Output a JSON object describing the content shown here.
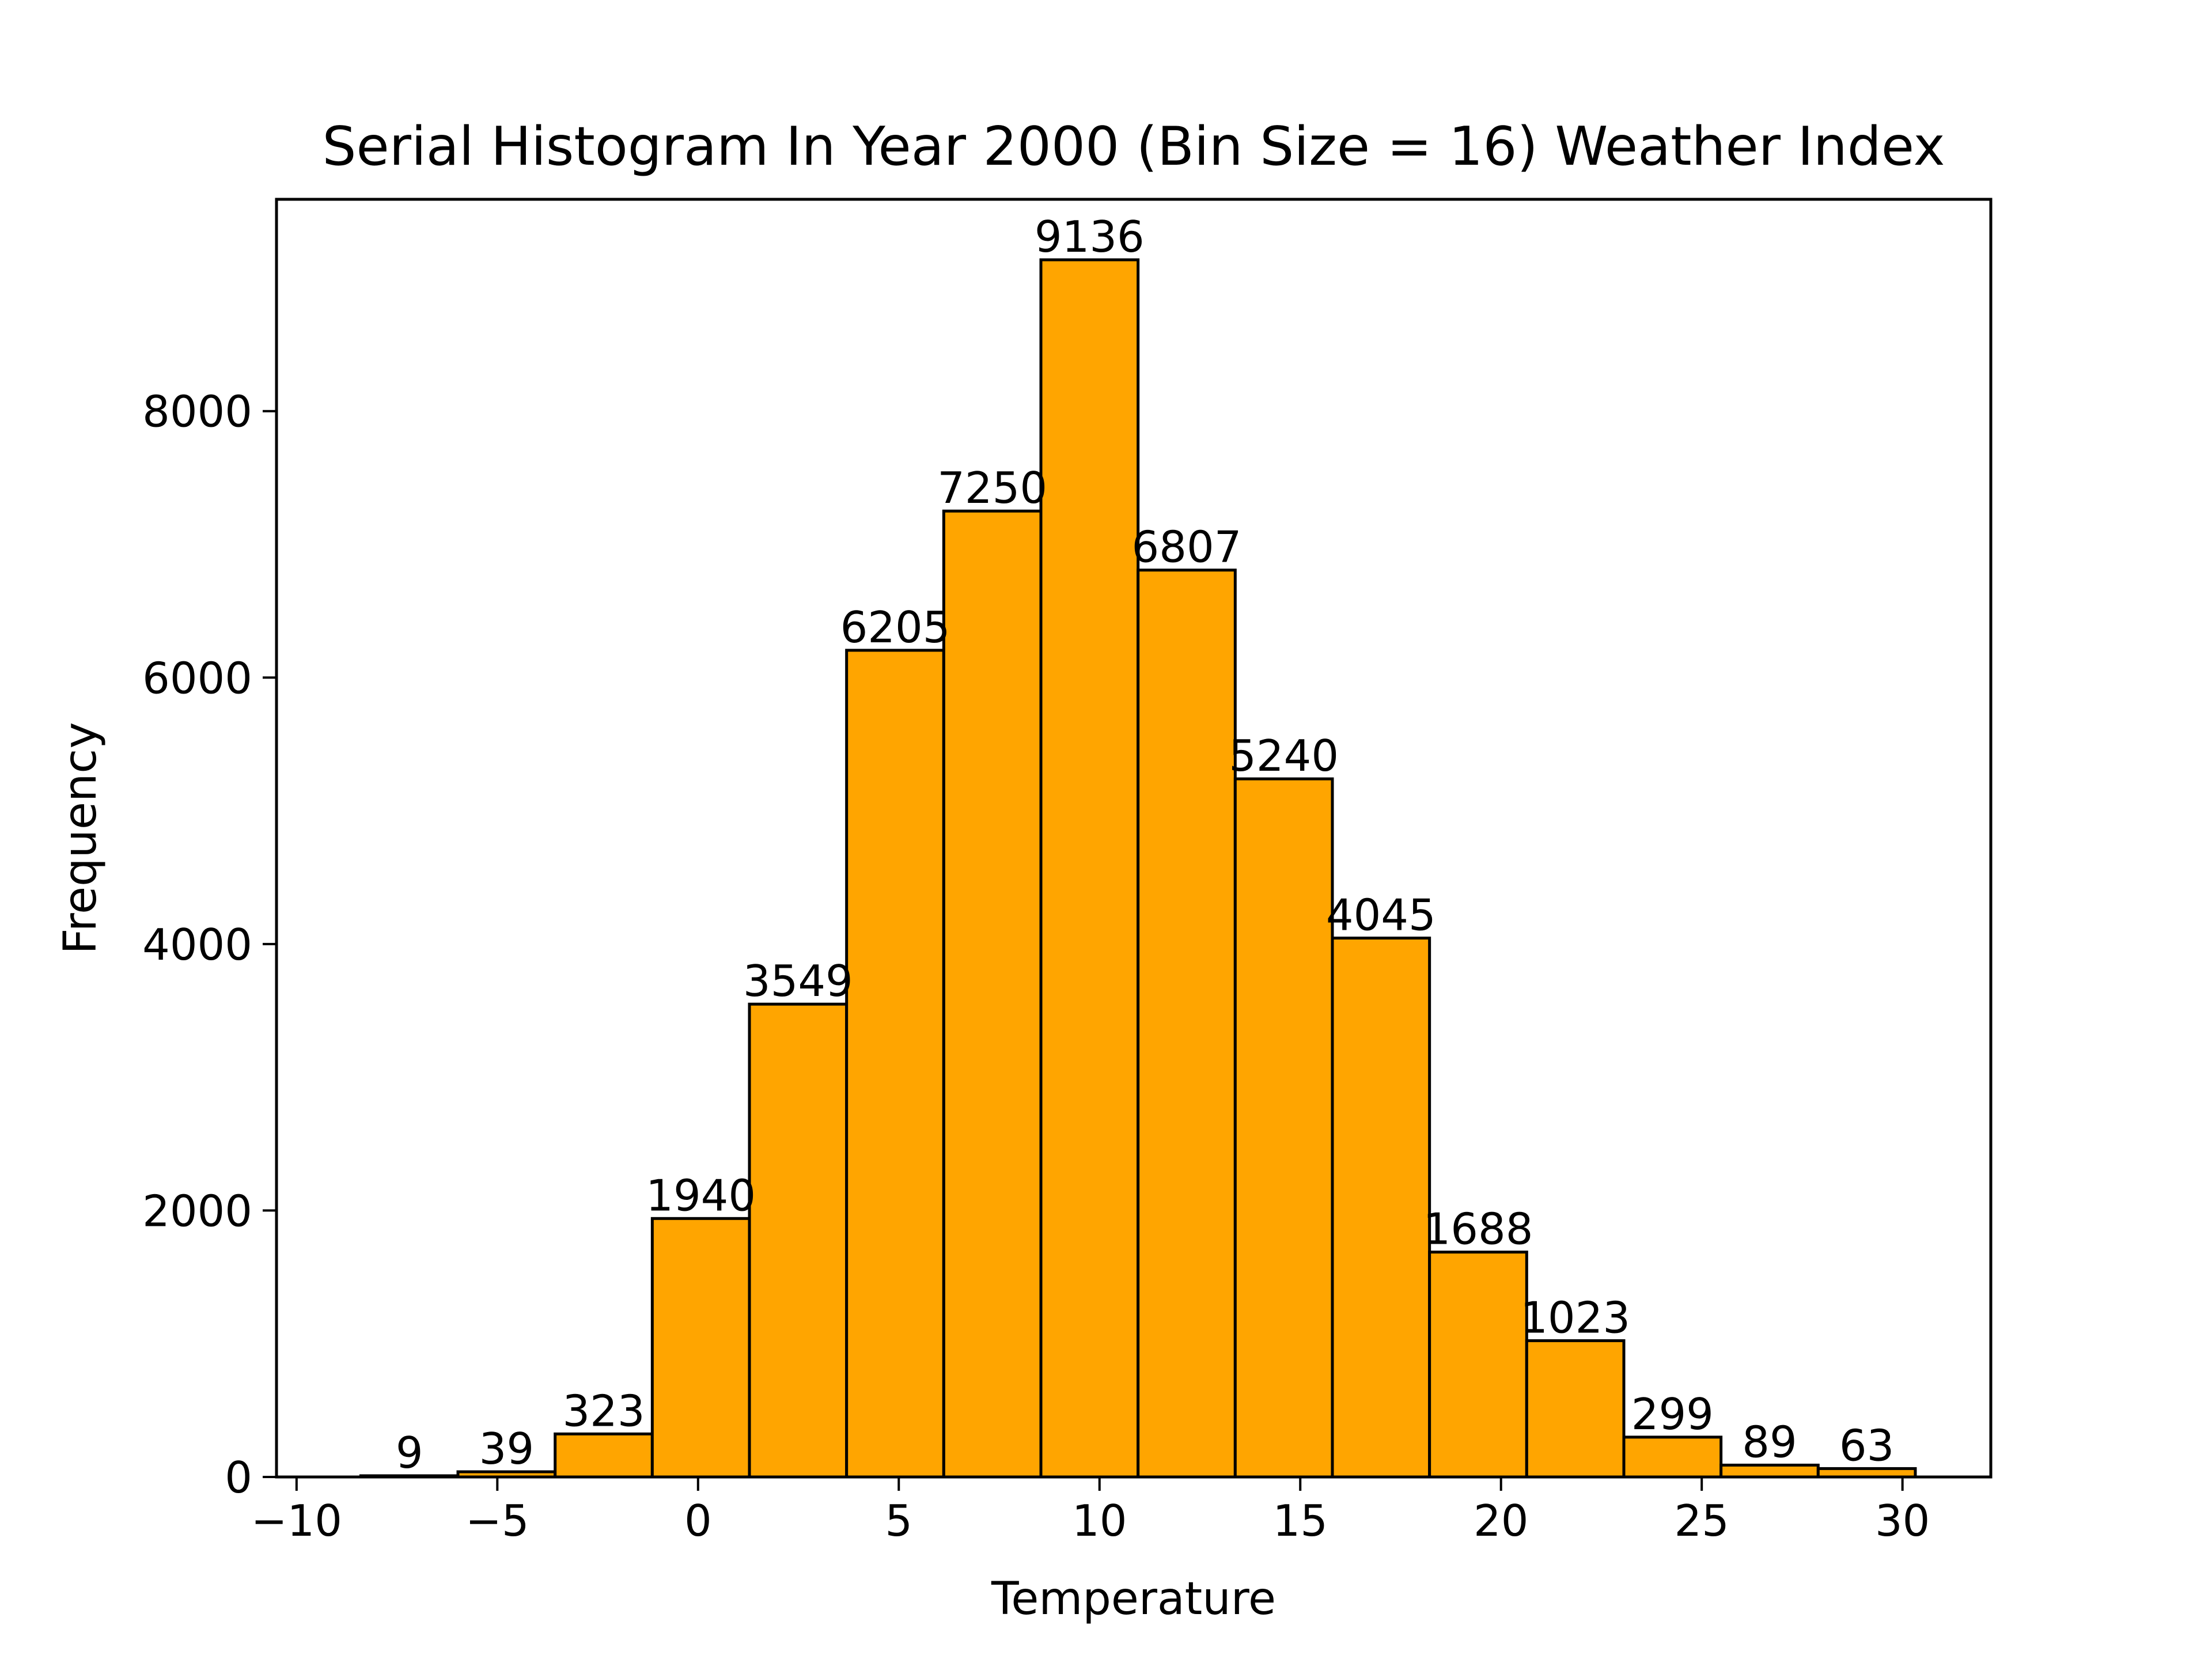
{
  "chart_data": {
    "type": "bar",
    "title": "Serial Histogram In Year 2000 (Bin Size = 16) Weather Index",
    "xlabel": "Temperature",
    "ylabel": "Frequency",
    "bin_edges": [
      -8.4,
      -5.98,
      -3.56,
      -1.14,
      1.28,
      3.7,
      6.12,
      8.54,
      10.96,
      13.38,
      15.8,
      18.22,
      20.64,
      23.06,
      25.48,
      27.9,
      30.32
    ],
    "values": [
      9,
      39,
      323,
      1940,
      3549,
      6205,
      7250,
      9136,
      6807,
      5240,
      4045,
      1688,
      1023,
      299,
      89,
      63
    ],
    "data_labels": [
      "9",
      "39",
      "323",
      "1940",
      "3549",
      "6205",
      "7250",
      "9136",
      "6807",
      "5240",
      "4045",
      "1688",
      "1023",
      "299",
      "89",
      "63"
    ],
    "xlim": [
      -10.5,
      32.2
    ],
    "ylim": [
      0,
      9590
    ],
    "x_ticks": [
      -10,
      -5,
      0,
      5,
      10,
      15,
      20,
      25,
      30
    ],
    "x_tick_labels": [
      "−10",
      "−5",
      "0",
      "5",
      "10",
      "15",
      "20",
      "25",
      "30"
    ],
    "y_ticks": [
      0,
      2000,
      4000,
      6000,
      8000
    ],
    "y_tick_labels": [
      "0",
      "2000",
      "4000",
      "6000",
      "8000"
    ],
    "grid": false,
    "colors": {
      "bar_fill": "#ffa500",
      "bar_edge": "#000000"
    }
  }
}
